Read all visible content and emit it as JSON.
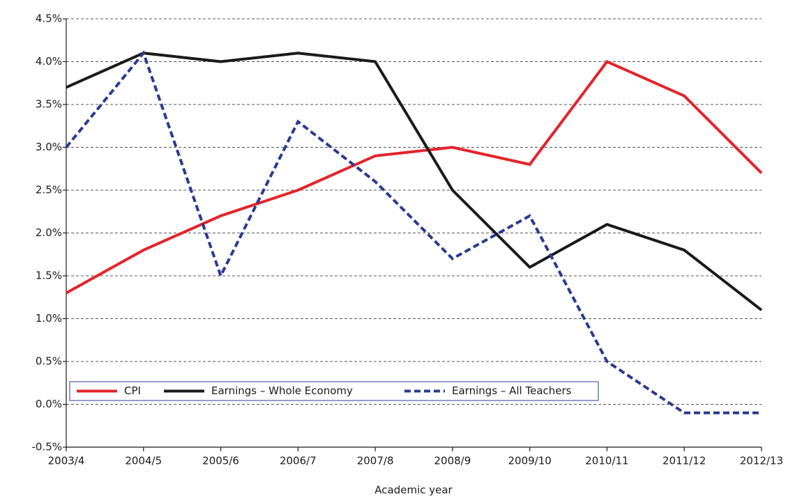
{
  "chart_data": {
    "type": "line",
    "x_label": "Academic year",
    "categories": [
      "2003/4",
      "2004/5",
      "2005/6",
      "2006/7",
      "2007/8",
      "2008/9",
      "2009/10",
      "2010/11",
      "2011/12",
      "2012/13"
    ],
    "series": [
      {
        "name": "CPI",
        "color": "#e3242b",
        "dashed": false,
        "values": [
          1.3,
          1.8,
          2.2,
          2.5,
          2.9,
          3.0,
          2.8,
          4.0,
          3.6,
          2.7
        ]
      },
      {
        "name": "Earnings – Whole Economy",
        "color": "#1a1a1a",
        "dashed": false,
        "values": [
          3.7,
          4.1,
          4.0,
          4.1,
          4.0,
          2.5,
          1.6,
          2.1,
          1.8,
          1.1
        ]
      },
      {
        "name": "Earnings – All Teachers",
        "color": "#2b3990",
        "dashed": true,
        "values": [
          3.0,
          4.1,
          1.5,
          3.3,
          2.6,
          1.7,
          2.2,
          0.5,
          -0.1,
          -0.1
        ]
      }
    ],
    "ylim": [
      -0.5,
      4.5
    ],
    "yticks": [
      {
        "value": -0.5,
        "label": "-0.5%"
      },
      {
        "value": 0,
        "label": "0.0%"
      },
      {
        "value": 0.5,
        "label": "0.5%"
      },
      {
        "value": 1,
        "label": "1.0%"
      },
      {
        "value": 1.5,
        "label": "1.5%"
      },
      {
        "value": 2,
        "label": "2.0%"
      },
      {
        "value": 2.5,
        "label": "2.5%"
      },
      {
        "value": 3,
        "label": "3.0%"
      },
      {
        "value": 3.5,
        "label": "3.5%"
      },
      {
        "value": 4,
        "label": "4.0%"
      },
      {
        "value": 4.5,
        "label": "4.5%"
      }
    ],
    "grid": true,
    "legend": "lower left"
  }
}
